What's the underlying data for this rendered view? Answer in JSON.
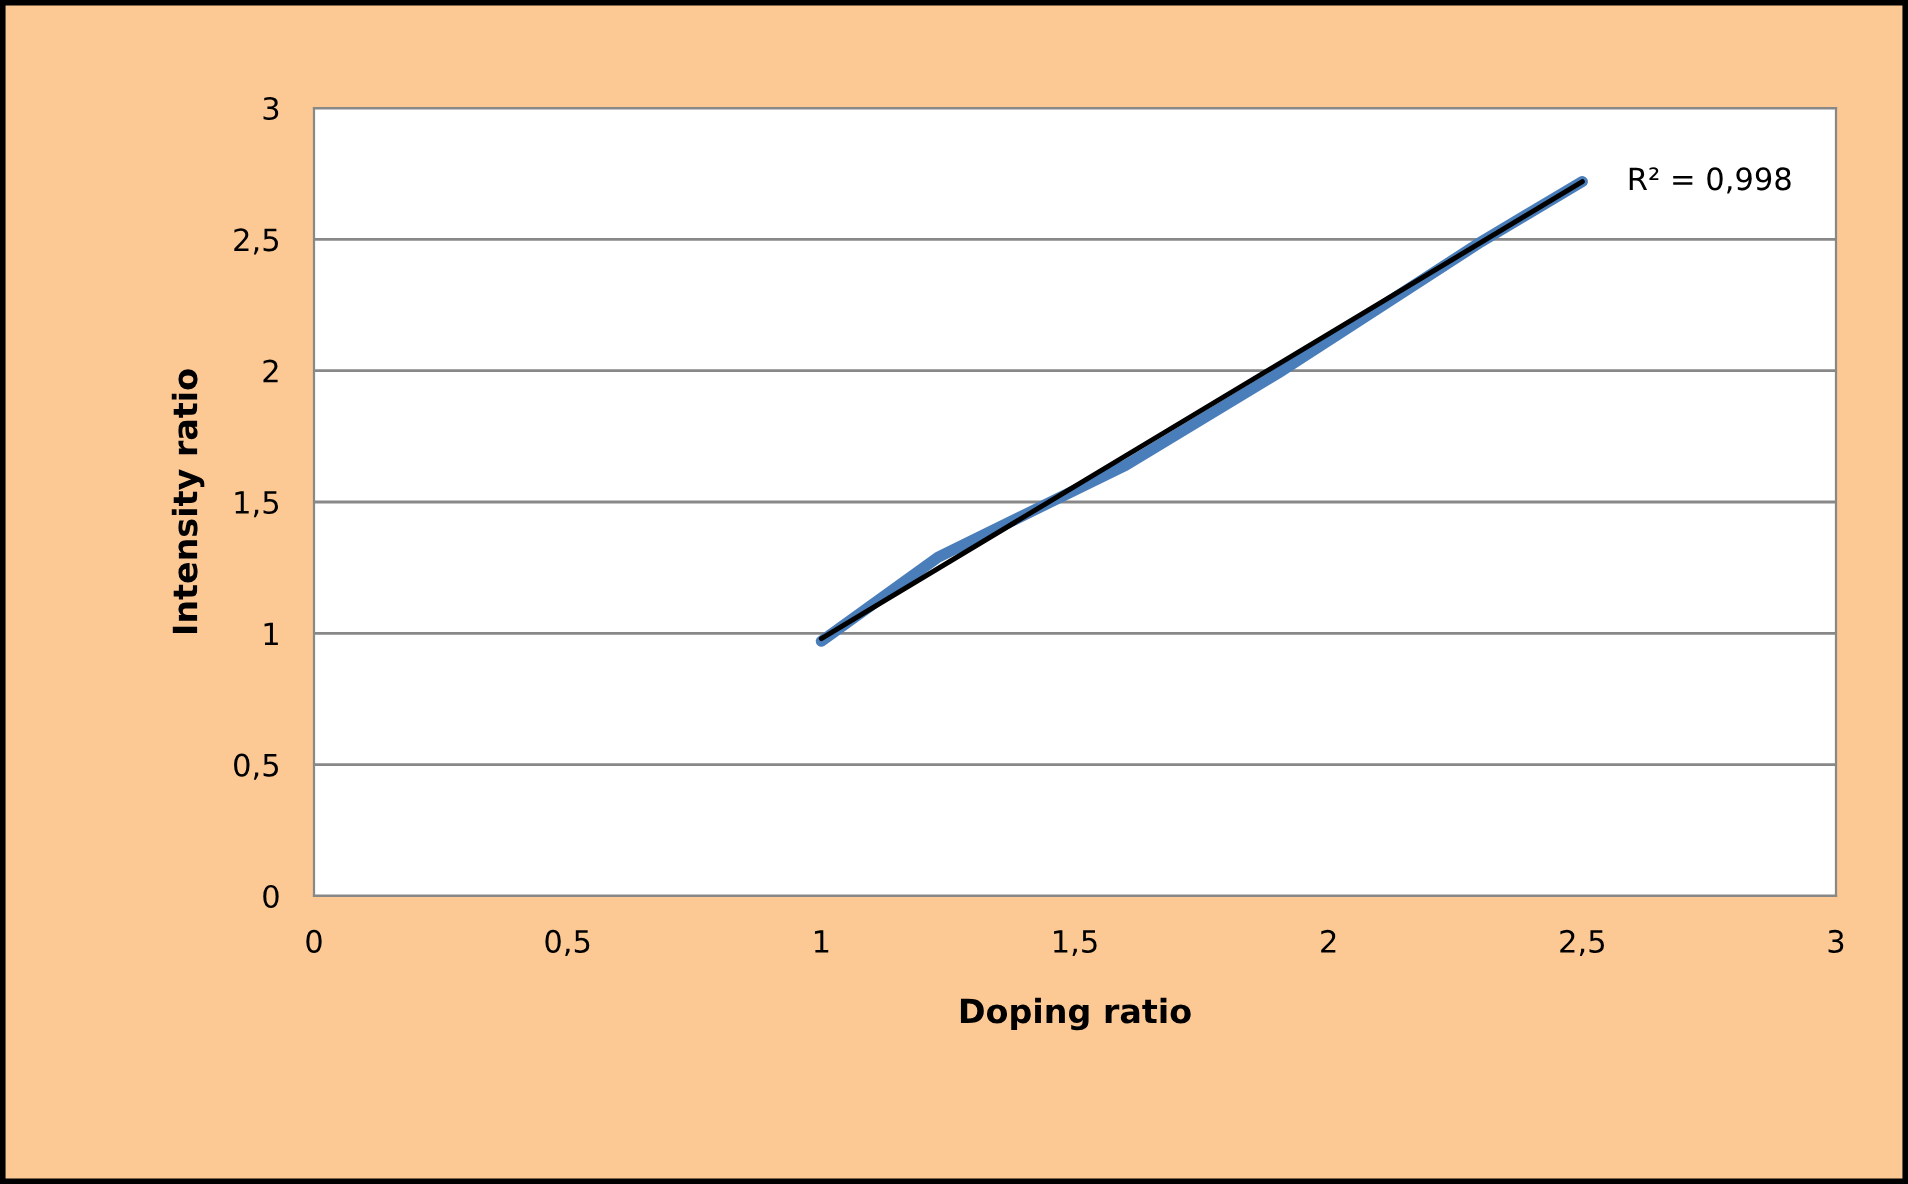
{
  "chart_data": {
    "type": "line",
    "xlabel": "Doping ratio",
    "ylabel": "Intensity ratio",
    "series": [
      {
        "color": "#4a7ebb",
        "x": [
          1.0,
          1.23,
          1.6,
          1.9,
          2.3,
          2.5
        ],
        "values": [
          0.97,
          1.29,
          1.64,
          1.99,
          2.49,
          2.72
        ]
      },
      {
        "type": "line",
        "color": "#000000",
        "x": [
          1.0,
          2.5
        ],
        "values": [
          0.98,
          2.72
        ]
      }
    ],
    "annotations": [
      {
        "text": "R² = 0,998",
        "x": 2.5,
        "y": 2.72
      }
    ],
    "xlim": [
      0,
      3
    ],
    "ylim": [
      0,
      3
    ],
    "xticks": [
      0,
      {
        "value": 0.5,
        "label": "0,5"
      },
      1,
      {
        "value": 1.5,
        "label": "1,5"
      },
      2,
      {
        "value": 2.5,
        "label": "2,5"
      },
      3
    ],
    "yticks": [
      0,
      {
        "value": 0.5,
        "label": "0,5"
      },
      1,
      {
        "value": 1.5,
        "label": "1,5"
      },
      2,
      {
        "value": 2.5,
        "label": "2,5"
      },
      3
    ],
    "grid": "y",
    "legend": false,
    "marker": "none"
  }
}
